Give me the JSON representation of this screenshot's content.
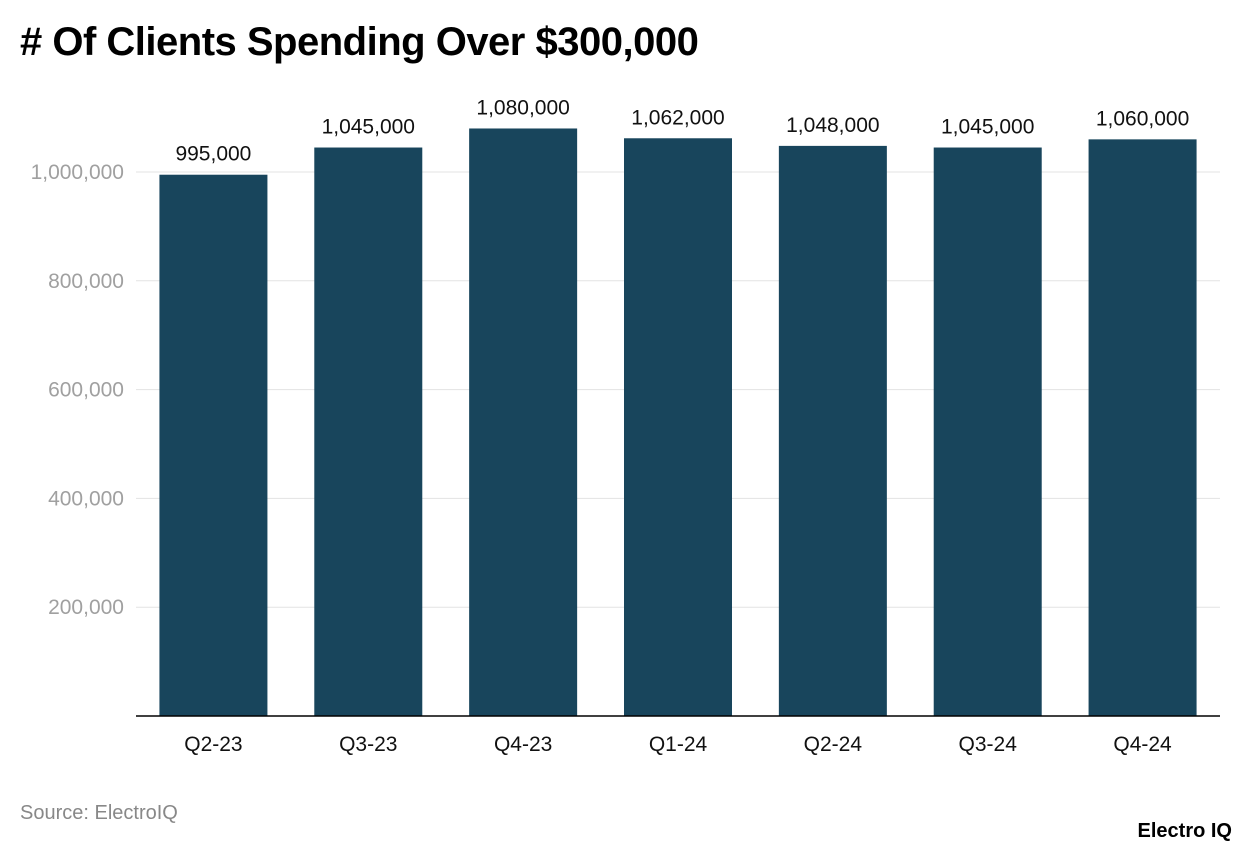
{
  "chart_data": {
    "type": "bar",
    "title": "# Of Clients Spending Over $300,000",
    "categories": [
      "Q2-23",
      "Q3-23",
      "Q4-23",
      "Q1-24",
      "Q2-24",
      "Q3-24",
      "Q4-24"
    ],
    "values": [
      995000,
      1045000,
      1080000,
      1062000,
      1048000,
      1045000,
      1060000
    ],
    "value_labels": [
      "995,000",
      "1,045,000",
      "1,080,000",
      "1,062,000",
      "1,048,000",
      "1,045,000",
      "1,060,000"
    ],
    "yticks": [
      200000,
      400000,
      600000,
      800000,
      1000000
    ],
    "ytick_labels": [
      "200,000",
      "400,000",
      "600,000",
      "800,000",
      "1,000,000"
    ],
    "ylim": [
      0,
      1100000
    ],
    "xlabel": "",
    "ylabel": "",
    "grid": true,
    "legend": "none",
    "bar_color": "#18455c"
  },
  "footer": {
    "source": "Source: ElectroIQ",
    "brand": "Electro IQ"
  },
  "colors": {
    "bar": "#18455c",
    "grid": "#e3e3e3",
    "axis": "#000000",
    "tick_label": "#a0a0a0",
    "category_label": "#111111",
    "value_label": "#111111"
  }
}
